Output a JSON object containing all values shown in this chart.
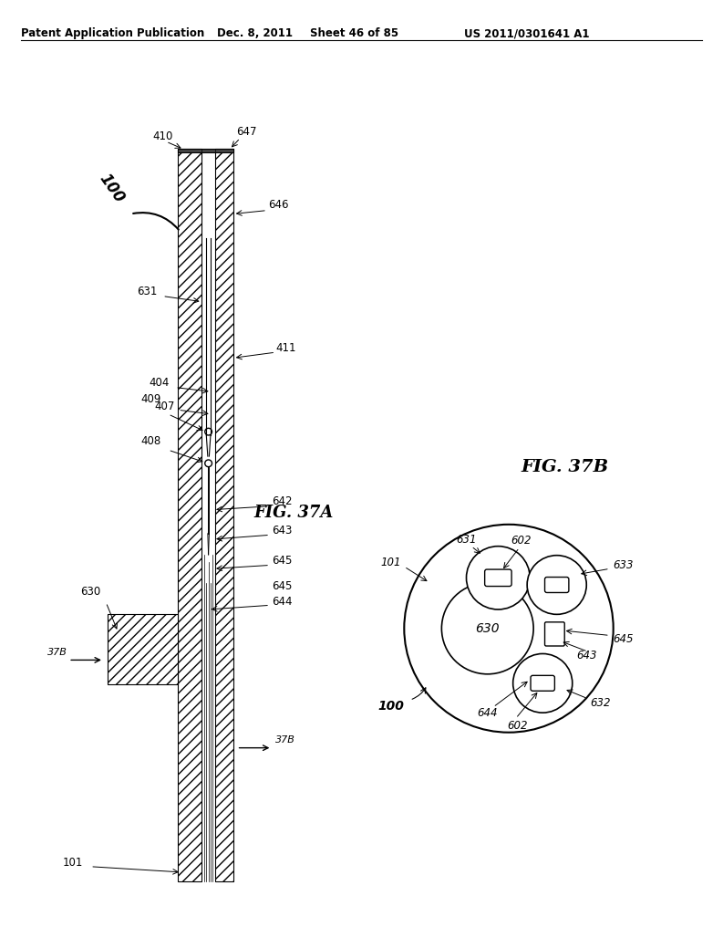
{
  "title_left": "Patent Application Publication",
  "title_center": "Dec. 8, 2011",
  "title_sheet": "Sheet 46 of 85",
  "title_right": "US 2011/0301641 A1",
  "fig_37a_label": "FIG. 37A",
  "fig_37b_label": "FIG. 37B",
  "background": "#ffffff",
  "line_color": "#000000"
}
